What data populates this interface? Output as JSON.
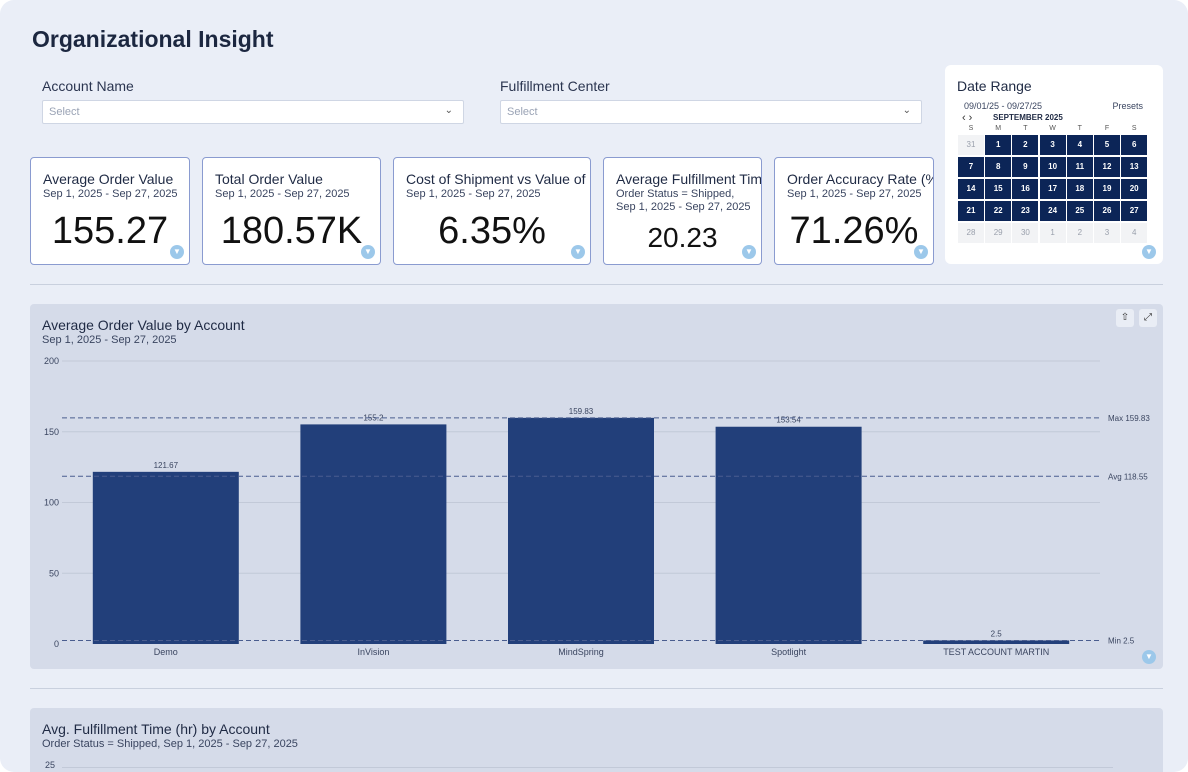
{
  "page": {
    "title": "Organizational Insight"
  },
  "filters": {
    "account": {
      "label": "Account Name",
      "placeholder": "Select"
    },
    "center": {
      "label": "Fulfillment Center",
      "placeholder": "Select"
    }
  },
  "kpis": [
    {
      "title": "Average Order Value",
      "subtitle": "Sep 1, 2025 - Sep 27, 2025",
      "value": "155.27"
    },
    {
      "title": "Total Order Value",
      "subtitle": "Sep 1, 2025 - Sep 27, 2025",
      "value": "180.57K"
    },
    {
      "title": "Cost of Shipment vs Value of Or",
      "subtitle": "Sep 1, 2025 - Sep 27, 2025",
      "value": "6.35%"
    },
    {
      "title": "Average Fulfillment Time",
      "subtitle": "Order Status = Shipped, Sep 1, 2025 - Sep 27, 2025",
      "value": "20.23"
    },
    {
      "title": "Order Accuracy Rate (%)",
      "subtitle": "Sep 1, 2025 - Sep 27, 2025",
      "value": "71.26%"
    }
  ],
  "date_range": {
    "title": "Date Range",
    "range": "09/01/25 - 09/27/25",
    "presets": "Presets",
    "month": "SEPTEMBER 2025",
    "weekdays": [
      "S",
      "M",
      "T",
      "W",
      "T",
      "F",
      "S"
    ],
    "weeks": [
      [
        {
          "d": "31",
          "s": "out"
        },
        {
          "d": "1",
          "s": "sel"
        },
        {
          "d": "2",
          "s": "sel"
        },
        {
          "d": "3",
          "s": "sel"
        },
        {
          "d": "4",
          "s": "sel"
        },
        {
          "d": "5",
          "s": "sel"
        },
        {
          "d": "6",
          "s": "sel"
        }
      ],
      [
        {
          "d": "7",
          "s": "sel"
        },
        {
          "d": "8",
          "s": "sel"
        },
        {
          "d": "9",
          "s": "sel"
        },
        {
          "d": "10",
          "s": "sel"
        },
        {
          "d": "11",
          "s": "sel"
        },
        {
          "d": "12",
          "s": "sel"
        },
        {
          "d": "13",
          "s": "sel"
        }
      ],
      [
        {
          "d": "14",
          "s": "sel"
        },
        {
          "d": "15",
          "s": "sel"
        },
        {
          "d": "16",
          "s": "sel"
        },
        {
          "d": "17",
          "s": "sel"
        },
        {
          "d": "18",
          "s": "sel"
        },
        {
          "d": "19",
          "s": "sel"
        },
        {
          "d": "20",
          "s": "sel"
        }
      ],
      [
        {
          "d": "21",
          "s": "sel"
        },
        {
          "d": "22",
          "s": "sel"
        },
        {
          "d": "23",
          "s": "sel"
        },
        {
          "d": "24",
          "s": "sel"
        },
        {
          "d": "25",
          "s": "sel"
        },
        {
          "d": "26",
          "s": "sel"
        },
        {
          "d": "27",
          "s": "sel"
        }
      ],
      [
        {
          "d": "28",
          "s": "out"
        },
        {
          "d": "29",
          "s": "out"
        },
        {
          "d": "30",
          "s": "out"
        },
        {
          "d": "1",
          "s": "out"
        },
        {
          "d": "2",
          "s": "out"
        },
        {
          "d": "3",
          "s": "out"
        },
        {
          "d": "4",
          "s": "out"
        }
      ]
    ]
  },
  "chart_data": [
    {
      "type": "bar",
      "title": "Average Order Value by Account",
      "subtitle": "Sep 1, 2025 - Sep 27, 2025",
      "categories": [
        "Demo",
        "InVision",
        "MindSpring",
        "Spotlight",
        "TEST ACCOUNT MARTIN"
      ],
      "values": [
        121.67,
        155.2,
        159.83,
        153.54,
        2.5
      ],
      "value_labels": [
        "121.67",
        "155.2",
        "159.83",
        "153.54",
        "2.5"
      ],
      "ylim": [
        0,
        200
      ],
      "yticks": [
        0,
        50,
        100,
        150,
        200
      ],
      "reference_lines": [
        {
          "label": "Max 159.83",
          "value": 159.83
        },
        {
          "label": "Avg 118.55",
          "value": 118.55
        },
        {
          "label": "Min 2.5",
          "value": 2.5
        }
      ],
      "color": "#223f7a"
    },
    {
      "type": "bar",
      "title": "Avg. Fulfillment Time (hr) by Account",
      "subtitle": "Order Status = Shipped, Sep 1, 2025 - Sep 27, 2025",
      "yticks": [
        25
      ]
    }
  ],
  "colors": {
    "accent": "#0c2557",
    "bar": "#223f7a",
    "panel": "#d5dbe9",
    "background": "#eaeef7"
  }
}
